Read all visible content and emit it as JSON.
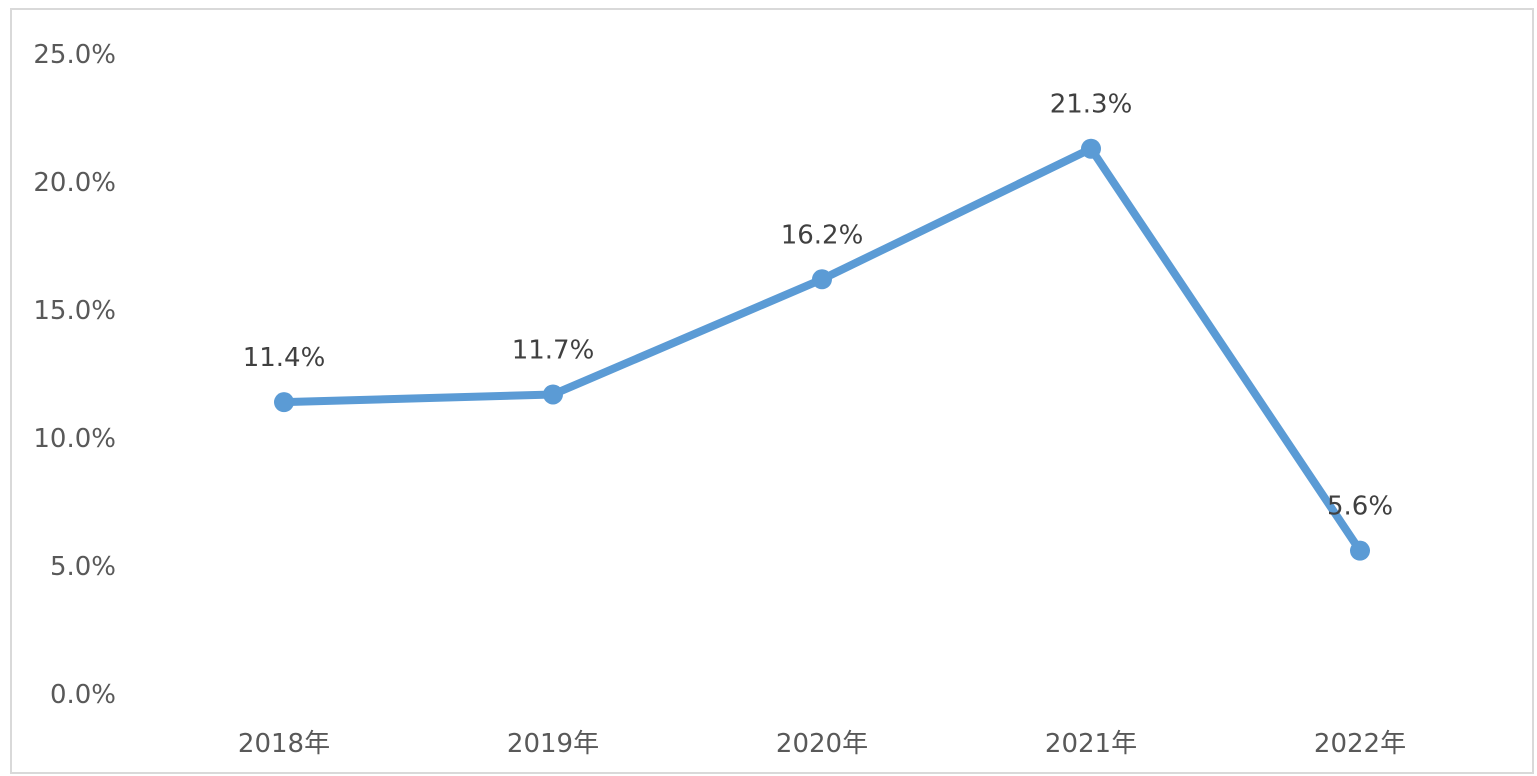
{
  "chart_data": {
    "type": "line",
    "categories": [
      "2018年",
      "2019年",
      "2020年",
      "2021年",
      "2022年"
    ],
    "series": [
      {
        "values": [
          11.4,
          11.7,
          16.2,
          21.3,
          5.6
        ],
        "labels": [
          "11.4%",
          "11.7%",
          "16.2%",
          "21.3%",
          "5.6%"
        ],
        "color": "#5b9bd5"
      }
    ],
    "yticks": [
      "0.0%",
      "5.0%",
      "10.0%",
      "15.0%",
      "20.0%",
      "25.0%"
    ],
    "ylim": [
      0,
      25
    ],
    "grid": false,
    "legend": "none"
  }
}
